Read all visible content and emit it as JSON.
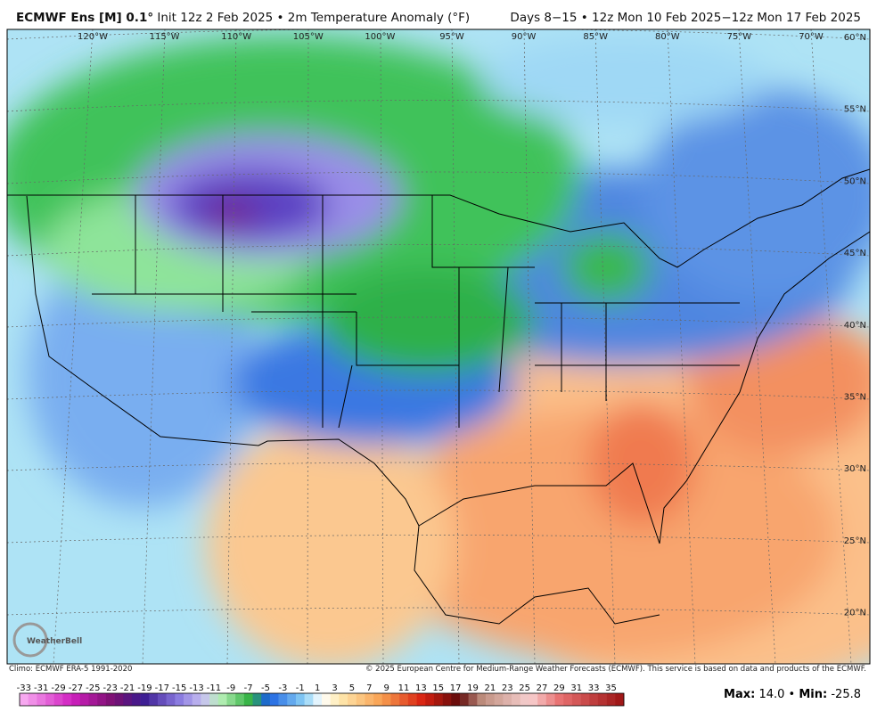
{
  "header": {
    "model": "ECMWF Ens [M] 0.1°",
    "description": "Init 12z 2 Feb 2025 • 2m Temperature Anomaly (°F)",
    "period": "Days 8−15 • 12z Mon 10 Feb 2025−12z Mon 17 Feb 2025"
  },
  "map": {
    "longitude_labels": [
      "120°W",
      "115°W",
      "110°W",
      "105°W",
      "100°W",
      "95°W",
      "90°W",
      "85°W",
      "80°W",
      "75°W",
      "70°W"
    ],
    "latitude_labels": [
      "60°N",
      "55°N",
      "50°N",
      "45°N",
      "40°N",
      "35°N",
      "30°N",
      "25°N",
      "20°N"
    ],
    "logo": "WeatherBell"
  },
  "footer": {
    "climo": "Climo: ECMWF ERA-5 1991-2020",
    "copyright": "© 2025 European Centre for Medium-Range Weather Forecasts (ECMWF). This service is based on data and products of the ECMWF."
  },
  "colorbar": {
    "ticks": [
      -33,
      -31,
      -29,
      -27,
      -25,
      -23,
      -21,
      -19,
      -17,
      -15,
      -13,
      -11,
      -9,
      -7,
      -5,
      -3,
      -1,
      1,
      3,
      5,
      7,
      9,
      11,
      13,
      15,
      17,
      19,
      21,
      23,
      25,
      27,
      29,
      31,
      33,
      35
    ]
  },
  "stats": {
    "max_label": "Max:",
    "max": "14.0",
    "separator": "•",
    "min_label": "Min:",
    "min": "-25.8"
  }
}
